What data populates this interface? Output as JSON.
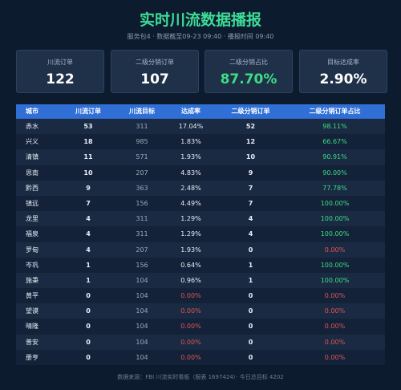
{
  "header": {
    "title": "实时川流数据播报",
    "subtitle": "服务包4 · 数据截至09-23 09:40 · 播报时间 09:40"
  },
  "cards": [
    {
      "label": "川流订单",
      "value": "122"
    },
    {
      "label": "二级分销订单",
      "value": "107"
    },
    {
      "label": "二级分销占比",
      "value": "87.70%",
      "color": "#3ddc84"
    },
    {
      "label": "目标达成率",
      "value": "2.90%"
    }
  ],
  "table": {
    "columns": [
      "城市",
      "川流订单",
      "川流目标",
      "达成率",
      "二级分销订单",
      "二级分销订单占比"
    ],
    "colors": {
      "positive": "#3ddc84",
      "zero": "#e05555"
    },
    "rows": [
      [
        "赤水",
        "53",
        "311",
        "17.04%",
        "52",
        "98.11%"
      ],
      [
        "兴义",
        "18",
        "985",
        "1.83%",
        "12",
        "66.67%"
      ],
      [
        "清镇",
        "11",
        "571",
        "1.93%",
        "10",
        "90.91%"
      ],
      [
        "思南",
        "10",
        "207",
        "4.83%",
        "9",
        "90.00%"
      ],
      [
        "黔西",
        "9",
        "363",
        "2.48%",
        "7",
        "77.78%"
      ],
      [
        "镇远",
        "7",
        "156",
        "4.49%",
        "7",
        "100.00%"
      ],
      [
        "龙里",
        "4",
        "311",
        "1.29%",
        "4",
        "100.00%"
      ],
      [
        "福泉",
        "4",
        "311",
        "1.29%",
        "4",
        "100.00%"
      ],
      [
        "罗甸",
        "4",
        "207",
        "1.93%",
        "0",
        "0.00%"
      ],
      [
        "岑巩",
        "1",
        "156",
        "0.64%",
        "1",
        "100.00%"
      ],
      [
        "施秉",
        "1",
        "104",
        "0.96%",
        "1",
        "100.00%"
      ],
      [
        "黄平",
        "0",
        "104",
        "0.00%",
        "0",
        "0.00%"
      ],
      [
        "望谟",
        "0",
        "104",
        "0.00%",
        "0",
        "0.00%"
      ],
      [
        "晴隆",
        "0",
        "104",
        "0.00%",
        "0",
        "0.00%"
      ],
      [
        "普安",
        "0",
        "104",
        "0.00%",
        "0",
        "0.00%"
      ],
      [
        "册亨",
        "0",
        "104",
        "0.00%",
        "0",
        "0.00%"
      ]
    ]
  },
  "footer": "数据来源：FBI 川流实时看板（报表 1697424）· 今日总目标 4202"
}
